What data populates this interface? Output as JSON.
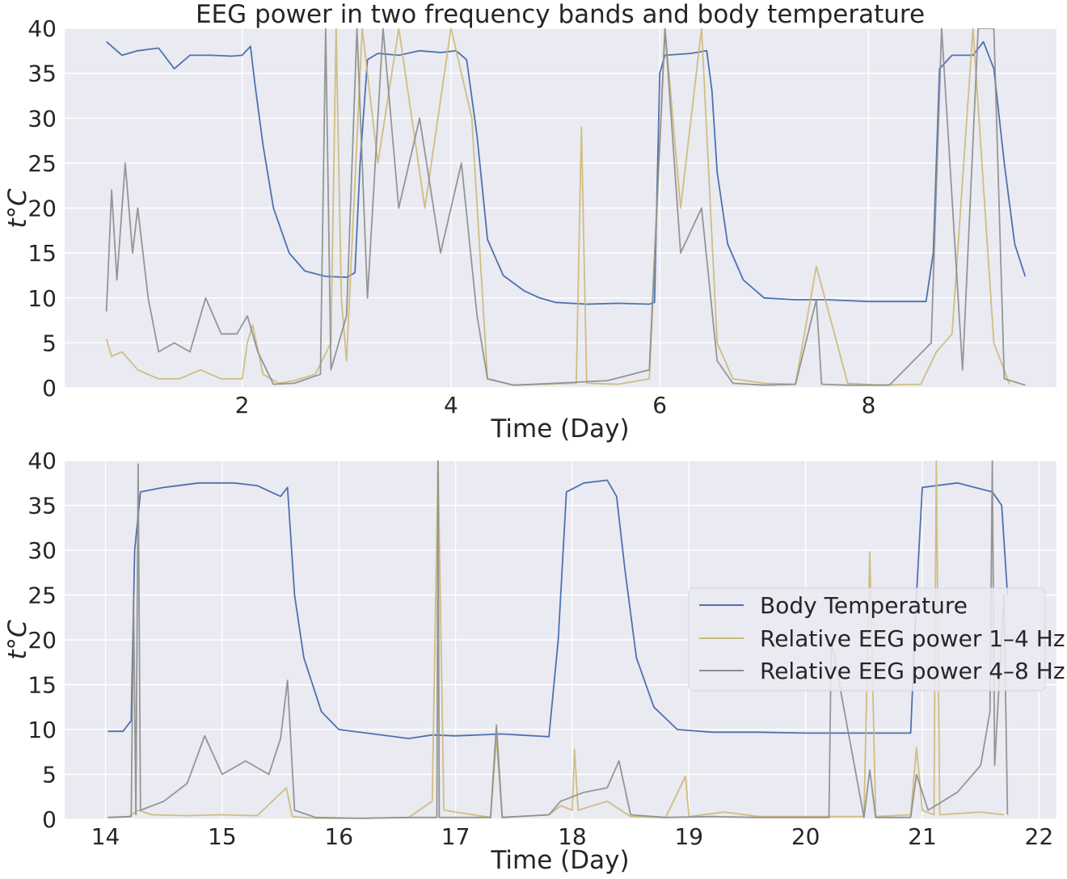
{
  "title": "EEG power in two frequency bands and body temperature",
  "colors": {
    "background": "#eaeaf2",
    "grid": "#ffffff",
    "temperature": "#4c72b0",
    "band_1_4": "#ccb974",
    "band_4_8": "#8c8c8c"
  },
  "legend": {
    "placement": "center-right of bottom panel",
    "entries": [
      "Body Temperature",
      "Relative EEG power 1–4 Hz",
      "Relative EEG power 4–8 Hz"
    ]
  },
  "chart_data": [
    {
      "type": "line",
      "panel": "top",
      "title": "EEG power in two frequency bands and body temperature",
      "xlabel": "Time (Day)",
      "ylabel": "t°C",
      "xlim": [
        0.3,
        9.8
      ],
      "ylim": [
        0,
        40
      ],
      "xticks": [
        2,
        4,
        6,
        8
      ],
      "yticks": [
        0,
        5,
        10,
        15,
        20,
        25,
        30,
        35,
        40
      ],
      "grid": true,
      "series": [
        {
          "name": "Body Temperature",
          "x": [
            0.7,
            0.85,
            1.0,
            1.2,
            1.35,
            1.5,
            1.7,
            1.9,
            2.0,
            2.08,
            2.12,
            2.2,
            2.3,
            2.45,
            2.6,
            2.8,
            3.0,
            3.08,
            3.13,
            3.2,
            3.3,
            3.5,
            3.7,
            3.9,
            4.05,
            4.15,
            4.25,
            4.35,
            4.5,
            4.7,
            4.85,
            5.0,
            5.3,
            5.6,
            5.9,
            5.95,
            6.0,
            6.05,
            6.3,
            6.45,
            6.5,
            6.55,
            6.65,
            6.8,
            7.0,
            7.3,
            7.6,
            8.0,
            8.4,
            8.55,
            8.62,
            8.68,
            8.8,
            9.0,
            9.1,
            9.2,
            9.3,
            9.4,
            9.5
          ],
          "y": [
            38.5,
            37.0,
            37.5,
            37.8,
            35.5,
            37.0,
            37.0,
            36.9,
            37.0,
            38.0,
            34.0,
            27.0,
            20.0,
            15.0,
            13.0,
            12.4,
            12.3,
            12.8,
            25.0,
            36.5,
            37.2,
            37.0,
            37.5,
            37.3,
            37.5,
            36.5,
            28.0,
            16.5,
            12.5,
            10.8,
            10.0,
            9.5,
            9.3,
            9.4,
            9.3,
            9.5,
            35.0,
            37.0,
            37.2,
            37.5,
            33.0,
            24.0,
            16.0,
            12.0,
            10.0,
            9.8,
            9.8,
            9.6,
            9.6,
            9.6,
            15.0,
            35.5,
            37.0,
            37.0,
            38.5,
            35.5,
            25.0,
            16.0,
            12.4
          ]
        },
        {
          "name": "Relative EEG power 1–4 Hz",
          "x": [
            0.7,
            0.75,
            0.85,
            1.0,
            1.2,
            1.4,
            1.6,
            1.8,
            2.0,
            2.05,
            2.1,
            2.2,
            2.35,
            2.5,
            2.7,
            2.85,
            2.9,
            2.95,
            3.0,
            3.15,
            3.3,
            3.5,
            3.75,
            4.0,
            4.2,
            4.35,
            4.6,
            4.9,
            5.2,
            5.25,
            5.3,
            5.6,
            5.9,
            6.05,
            6.2,
            6.4,
            6.55,
            6.7,
            7.0,
            7.3,
            7.5,
            7.8,
            8.1,
            8.5,
            8.65,
            8.8,
            9.0,
            9.2,
            9.35
          ],
          "y": [
            5.4,
            3.5,
            4.0,
            2.0,
            1.0,
            1.0,
            2.0,
            1.0,
            1.0,
            5.0,
            7.0,
            1.5,
            0.5,
            0.8,
            1.5,
            5.0,
            40,
            10,
            3.0,
            40,
            25,
            40,
            20,
            40,
            30,
            1.0,
            0.3,
            0.4,
            0.5,
            29.0,
            0.5,
            0.4,
            1.0,
            40,
            20,
            40,
            5.0,
            1.0,
            0.5,
            0.4,
            13.5,
            0.5,
            0.3,
            0.4,
            4.0,
            6.0,
            40,
            5.0,
            0.4
          ]
        },
        {
          "name": "Relative EEG power 4–8 Hz",
          "x": [
            0.7,
            0.75,
            0.8,
            0.88,
            0.95,
            1.0,
            1.1,
            1.2,
            1.35,
            1.5,
            1.65,
            1.8,
            1.95,
            2.05,
            2.15,
            2.3,
            2.5,
            2.75,
            2.8,
            2.85,
            3.0,
            3.1,
            3.2,
            3.35,
            3.5,
            3.7,
            3.9,
            4.1,
            4.25,
            4.35,
            4.6,
            5.0,
            5.5,
            5.9,
            6.05,
            6.2,
            6.4,
            6.55,
            6.7,
            7.0,
            7.3,
            7.5,
            7.55,
            7.8,
            8.2,
            8.6,
            8.7,
            8.9,
            9.05,
            9.2,
            9.3,
            9.5
          ],
          "y": [
            8.5,
            22.0,
            12.0,
            25.0,
            15.0,
            20.0,
            10.0,
            4.0,
            5.0,
            4.0,
            10.0,
            6.0,
            6.0,
            8.0,
            4.0,
            0.4,
            0.5,
            1.5,
            40,
            2.0,
            8.0,
            40,
            10.0,
            40,
            20.0,
            30.0,
            15.0,
            25.0,
            8.0,
            1.0,
            0.3,
            0.5,
            0.8,
            2.0,
            40,
            15.0,
            20.0,
            3.0,
            0.5,
            0.3,
            0.4,
            9.8,
            0.4,
            0.3,
            0.3,
            5.0,
            40,
            2.0,
            40,
            40,
            1.0,
            0.3
          ]
        }
      ]
    },
    {
      "type": "line",
      "panel": "bottom",
      "title": "",
      "xlabel": "Time (Day)",
      "ylabel": "t°C",
      "xlim": [
        13.65,
        22.15
      ],
      "ylim": [
        0,
        40
      ],
      "xticks": [
        14,
        15,
        16,
        17,
        18,
        19,
        20,
        21,
        22
      ],
      "yticks": [
        0,
        5,
        10,
        15,
        20,
        25,
        30,
        35,
        40
      ],
      "grid": true,
      "series": [
        {
          "name": "Body Temperature",
          "x": [
            14.02,
            14.15,
            14.22,
            14.25,
            14.3,
            14.5,
            14.8,
            15.1,
            15.3,
            15.5,
            15.56,
            15.62,
            15.7,
            15.85,
            16.0,
            16.3,
            16.6,
            16.8,
            17.0,
            17.4,
            17.8,
            17.88,
            17.95,
            18.1,
            18.3,
            18.38,
            18.45,
            18.55,
            18.7,
            18.9,
            19.2,
            19.6,
            20.0,
            20.5,
            20.9,
            20.95,
            21.0,
            21.3,
            21.6,
            21.68,
            21.73
          ],
          "y": [
            9.8,
            9.8,
            11.0,
            30.0,
            36.5,
            37.0,
            37.5,
            37.5,
            37.2,
            36.0,
            37.0,
            25.0,
            18.0,
            12.0,
            10.0,
            9.5,
            9.0,
            9.4,
            9.3,
            9.5,
            9.2,
            20.0,
            36.5,
            37.5,
            37.8,
            36.0,
            28.0,
            18.0,
            12.5,
            10.0,
            9.7,
            9.7,
            9.6,
            9.6,
            9.6,
            25.0,
            37.0,
            37.5,
            36.5,
            35.0,
            25.0
          ]
        },
        {
          "name": "Relative EEG power 1–4 Hz",
          "x": [
            14.02,
            14.2,
            14.28,
            14.4,
            14.7,
            15.0,
            15.3,
            15.55,
            15.6,
            15.8,
            16.2,
            16.6,
            16.8,
            16.85,
            16.9,
            17.3,
            17.35,
            17.4,
            17.8,
            17.9,
            18.0,
            18.02,
            18.05,
            18.3,
            18.5,
            18.8,
            18.97,
            19.0,
            19.3,
            19.6,
            20.0,
            20.2,
            20.5,
            20.55,
            20.6,
            20.9,
            20.95,
            21.0,
            21.1,
            21.12,
            21.15,
            21.5,
            21.7
          ],
          "y": [
            0.2,
            0.3,
            1.0,
            0.5,
            0.4,
            0.5,
            0.4,
            3.5,
            0.3,
            0.1,
            0.1,
            0.2,
            2.0,
            40,
            1.0,
            0.2,
            9.0,
            0.2,
            0.5,
            1.5,
            1.0,
            7.8,
            1.0,
            2.0,
            0.3,
            0.2,
            4.8,
            0.3,
            0.8,
            0.3,
            0.3,
            0.3,
            0.3,
            29.8,
            0.3,
            0.5,
            8.0,
            1.0,
            0.5,
            40,
            0.5,
            0.8,
            0.5
          ]
        },
        {
          "name": "Relative EEG power 4–8 Hz",
          "x": [
            14.02,
            14.22,
            14.24,
            14.26,
            14.28,
            14.3,
            14.5,
            14.7,
            14.85,
            15.0,
            15.2,
            15.4,
            15.5,
            15.56,
            15.62,
            15.8,
            16.2,
            16.6,
            16.84,
            16.85,
            16.86,
            17.3,
            17.35,
            17.4,
            17.8,
            17.9,
            18.1,
            18.3,
            18.4,
            18.5,
            18.8,
            19.2,
            19.6,
            20.0,
            20.2,
            20.22,
            20.5,
            20.55,
            20.6,
            20.9,
            20.95,
            21.05,
            21.3,
            21.5,
            21.58,
            21.6,
            21.62,
            21.7,
            21.73
          ],
          "y": [
            0.2,
            0.3,
            24.7,
            0.5,
            39.6,
            1.0,
            2.0,
            4.0,
            9.3,
            5.0,
            6.5,
            5.0,
            9.0,
            15.5,
            1.0,
            0.2,
            0.1,
            0.2,
            0.2,
            40,
            0.2,
            0.2,
            10.5,
            0.2,
            0.5,
            2.0,
            3.0,
            3.5,
            6.5,
            0.5,
            0.2,
            0.3,
            0.2,
            0.2,
            0.2,
            20.0,
            0.2,
            5.5,
            0.2,
            0.2,
            5.0,
            1.0,
            3.0,
            6.0,
            12.0,
            40,
            6.0,
            25.0,
            0.5
          ]
        }
      ]
    }
  ]
}
